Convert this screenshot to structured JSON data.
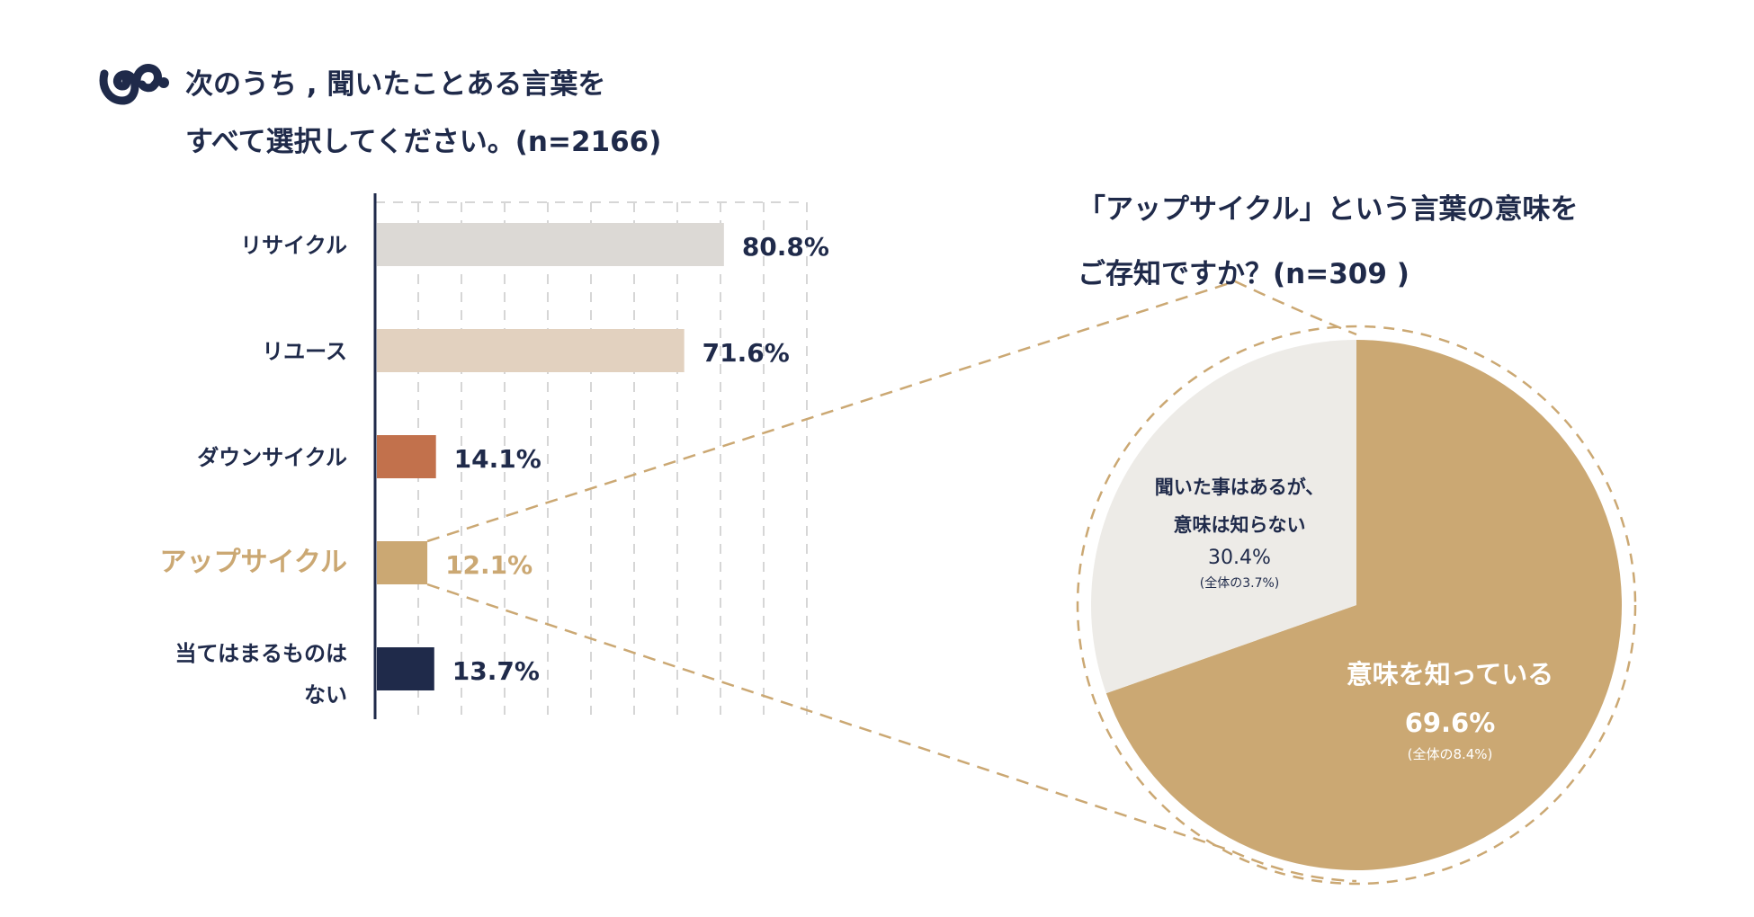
{
  "colors": {
    "navy": "#1f2a4a",
    "gold": "#cba873",
    "grid": "#d6d6d6",
    "slice_unknown": "#edebe7"
  },
  "logo": {
    "icon": "squirrel-logo-icon"
  },
  "chart_data": [
    {
      "type": "bar",
      "orientation": "horizontal",
      "title_lines": [
        "次のうち , 聞いたことある言葉を",
        "すべて選択してください。(n=2166)"
      ],
      "categories": [
        "リサイクル",
        "リユース",
        "ダウンサイクル",
        "アップサイクル",
        "当てはまるものは|ない"
      ],
      "values": [
        80.8,
        71.6,
        14.1,
        12.1,
        13.7
      ],
      "value_labels": [
        "80.8%",
        "71.6%",
        "14.1%",
        "12.1%",
        "13.7%"
      ],
      "colors": [
        "#dcd9d5",
        "#e2d1bf",
        "#c2714c",
        "#cba873",
        "#1f2a4a"
      ],
      "highlight_index": 3,
      "xlim": [
        0,
        100
      ],
      "grid": "dashed"
    },
    {
      "type": "pie",
      "title_lines": [
        "「アップサイクル」という言葉の意味を",
        "ご存知ですか？(n=309 )"
      ],
      "slices": [
        {
          "label_lines": [
            "意味を知っている"
          ],
          "value": 69.6,
          "value_label": "69.6%",
          "sub_label": "(全体の8.4%)",
          "color": "#cba873",
          "text_color": "#ffffff"
        },
        {
          "label_lines": [
            "聞いた事はあるが、",
            "意味は知らない"
          ],
          "value": 30.4,
          "value_label": "30.4%",
          "sub_label": "(全体の3.7%)",
          "color": "#edebe7",
          "text_color": "#1f2a4a"
        }
      ]
    }
  ]
}
